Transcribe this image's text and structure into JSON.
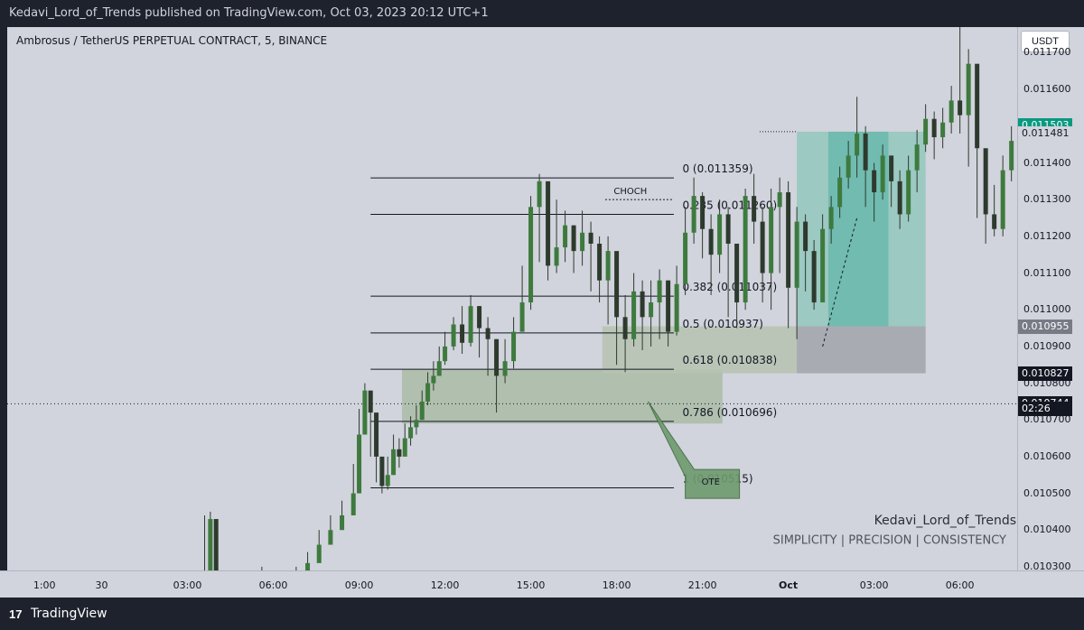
{
  "header": {
    "published": "Kedavi_Lord_of_Trends published on TradingView.com, Oct 03, 2023 20:12 UTC+1"
  },
  "symbol": "Ambrosus / TetherUS PERPETUAL CONTRACT, 5, BINANCE",
  "currency_button": "USDT",
  "footer": {
    "brand": "TradingView",
    "logo": "17"
  },
  "colors": {
    "chart_bg": "#d1d4dc",
    "candle": "#2d3a2d",
    "zone": "#a8b9a3",
    "teal": "#5fb5a8",
    "teal_light": "#9cc9c2",
    "gray_zone": "#a9abb3",
    "current": "#089981"
  },
  "watermark": {
    "author": "Kedavi_Lord_of_Trends",
    "tagline": "SIMPLICITY  |  PRECISION  |  CONSISTENCY"
  },
  "annotations": {
    "choch": "CHOCH",
    "ote": "OTE"
  },
  "fib_levels": [
    {
      "label": "0 (0.011359)",
      "price": 0.011359
    },
    {
      "label": "0.235 (0.011260)",
      "price": 0.01126
    },
    {
      "label": "0.382 (0.011037)",
      "price": 0.011037
    },
    {
      "label": "0.5 (0.010937)",
      "price": 0.010937
    },
    {
      "label": "0.618 (0.010838)",
      "price": 0.010838
    },
    {
      "label": "0.786 (0.010696)",
      "price": 0.010696
    },
    {
      "label": "1 (0.010515)",
      "price": 0.010515
    }
  ],
  "price_labels": [
    {
      "text": "0.011503",
      "price": 0.011503,
      "bg": "#089981",
      "fg": "#ffffff"
    },
    {
      "text": "0.011481",
      "price": 0.011481,
      "bg": "#d1d4dc",
      "fg": "#131722"
    },
    {
      "text": "0.010955",
      "price": 0.010955,
      "bg": "#787b86",
      "fg": "#ffffff"
    },
    {
      "text": "0.010827",
      "price": 0.010827,
      "bg": "#131722",
      "fg": "#ffffff"
    },
    {
      "text": "0.010744",
      "price": 0.010744,
      "bg": "#131722",
      "fg": "#ffffff"
    },
    {
      "text": "02:26",
      "price": 0.010729,
      "bg": "#131722",
      "fg": "#ffffff"
    }
  ],
  "chart_data": {
    "type": "line",
    "title": "Ambrosus / TetherUS PERPETUAL CONTRACT, 5, BINANCE",
    "y_ticks": [
      "0.011700",
      "0.011600",
      "0.011400",
      "0.011300",
      "0.011200",
      "0.011100",
      "0.011000",
      "0.010900",
      "0.010800",
      "0.010700",
      "0.010600",
      "0.010500",
      "0.010400",
      "0.010300"
    ],
    "y_tick_values": [
      0.0117,
      0.0116,
      0.0114,
      0.0113,
      0.0112,
      0.0111,
      0.011,
      0.0109,
      0.0108,
      0.0107,
      0.0106,
      0.0105,
      0.0104,
      0.0103
    ],
    "x_ticks": [
      "1:00",
      "30",
      "03:00",
      "06:00",
      "09:00",
      "12:00",
      "15:00",
      "18:00",
      "21:00",
      "Oct",
      "03:00",
      "06:00"
    ],
    "x_tick_hours": [
      -2,
      0,
      3,
      6,
      9,
      12,
      15,
      18,
      21,
      24,
      27,
      30
    ],
    "ylim": [
      0.01029,
      0.01177
    ],
    "xlim_hours": [
      -3.3,
      32.0
    ],
    "grid": false,
    "series": [
      {
        "x_hours": [
          3.6,
          3.8,
          4.0,
          4.4,
          5.0,
          5.6,
          6.0,
          6.4,
          6.8,
          7.2,
          7.6,
          8.0,
          8.4,
          8.8,
          9.0,
          9.2,
          9.4,
          9.6,
          9.8,
          10.0,
          10.2,
          10.4,
          10.6,
          10.8,
          11.0,
          11.2,
          11.4,
          11.6,
          11.8,
          12.0,
          12.3,
          12.6,
          12.9,
          13.2,
          13.5,
          13.8,
          14.1,
          14.4,
          14.7,
          15.0,
          15.3,
          15.6,
          15.9,
          16.2,
          16.5,
          16.8,
          17.1,
          17.4,
          17.7,
          18.0,
          18.3,
          18.6,
          18.9,
          19.2,
          19.5,
          19.8,
          20.1,
          20.4,
          20.7,
          21.0,
          21.3,
          21.6,
          21.9,
          22.2,
          22.5,
          22.8,
          23.1,
          23.4,
          23.7,
          24.0,
          24.3,
          24.6,
          24.9,
          25.2,
          25.5,
          25.8,
          26.1,
          26.4,
          26.7,
          27.0,
          27.3,
          27.6,
          27.9,
          28.2,
          28.5,
          28.8,
          29.1,
          29.4,
          29.7,
          30.0,
          30.3,
          30.6,
          30.9,
          31.2,
          31.5,
          31.8
        ],
        "close": [
          0.01027,
          0.01043,
          0.01028,
          0.01025,
          0.01026,
          0.01028,
          0.01027,
          0.01026,
          0.01028,
          0.01031,
          0.01036,
          0.0104,
          0.01044,
          0.0105,
          0.01066,
          0.01078,
          0.01072,
          0.0106,
          0.01052,
          0.01055,
          0.01062,
          0.0106,
          0.01065,
          0.01068,
          0.0107,
          0.01075,
          0.0108,
          0.01082,
          0.01086,
          0.0109,
          0.01096,
          0.01091,
          0.01101,
          0.01095,
          0.01092,
          0.01082,
          0.01086,
          0.01094,
          0.01102,
          0.01128,
          0.01135,
          0.01112,
          0.01117,
          0.01123,
          0.01116,
          0.01121,
          0.01118,
          0.01108,
          0.01116,
          0.01098,
          0.01092,
          0.01105,
          0.01098,
          0.01102,
          0.01108,
          0.01094,
          0.01107,
          0.01121,
          0.01131,
          0.01122,
          0.01115,
          0.01126,
          0.01118,
          0.01102,
          0.01131,
          0.01124,
          0.0111,
          0.01128,
          0.01132,
          0.01106,
          0.01124,
          0.01116,
          0.01102,
          0.01122,
          0.01128,
          0.01136,
          0.01142,
          0.01148,
          0.01138,
          0.01132,
          0.01142,
          0.01135,
          0.01126,
          0.01138,
          0.01145,
          0.01152,
          0.01147,
          0.01151,
          0.01157,
          0.01153,
          0.01167,
          0.01144,
          0.01126,
          0.01122,
          0.01138,
          0.01146
        ],
        "high": [
          0.01044,
          0.01045,
          0.0103,
          0.01027,
          0.01028,
          0.0103,
          0.01029,
          0.01028,
          0.0103,
          0.01034,
          0.0104,
          0.01044,
          0.01048,
          0.01058,
          0.01073,
          0.0108,
          0.01076,
          0.01068,
          0.01058,
          0.0106,
          0.01066,
          0.01065,
          0.01069,
          0.01071,
          0.01074,
          0.01078,
          0.01083,
          0.01086,
          0.0109,
          0.01094,
          0.01098,
          0.01101,
          0.01104,
          0.01101,
          0.01098,
          0.01092,
          0.01092,
          0.01098,
          0.01112,
          0.01131,
          0.01137,
          0.01134,
          0.0113,
          0.01127,
          0.01123,
          0.01127,
          0.01124,
          0.0112,
          0.0112,
          0.01112,
          0.01104,
          0.0111,
          0.01108,
          0.01108,
          0.01111,
          0.01108,
          0.01112,
          0.01128,
          0.01136,
          0.01132,
          0.01126,
          0.0113,
          0.01128,
          0.01118,
          0.01133,
          0.01137,
          0.01128,
          0.01133,
          0.01136,
          0.01135,
          0.01128,
          0.01126,
          0.01119,
          0.01126,
          0.01131,
          0.01139,
          0.01146,
          0.01158,
          0.0115,
          0.0114,
          0.01145,
          0.01142,
          0.01138,
          0.01142,
          0.01149,
          0.01156,
          0.01154,
          0.01155,
          0.01161,
          0.01177,
          0.01171,
          0.0116,
          0.0114,
          0.01134,
          0.01142,
          0.0115
        ],
        "low": [
          0.01025,
          0.01026,
          0.01025,
          0.01022,
          0.01024,
          0.01026,
          0.01025,
          0.01024,
          0.01026,
          0.01029,
          0.01033,
          0.01037,
          0.01041,
          0.01046,
          0.0105,
          0.01068,
          0.0106,
          0.01053,
          0.0105,
          0.01051,
          0.01055,
          0.01057,
          0.01061,
          0.01063,
          0.01066,
          0.0107,
          0.01074,
          0.01078,
          0.01082,
          0.01085,
          0.01089,
          0.01088,
          0.0109,
          0.01087,
          0.01082,
          0.01072,
          0.0108,
          0.01084,
          0.01095,
          0.011,
          0.01113,
          0.01108,
          0.0111,
          0.01113,
          0.0111,
          0.01112,
          0.01105,
          0.01102,
          0.01096,
          0.01085,
          0.01083,
          0.0109,
          0.01089,
          0.0109,
          0.01092,
          0.0109,
          0.01093,
          0.01104,
          0.01118,
          0.01114,
          0.01104,
          0.0111,
          0.01098,
          0.01095,
          0.011,
          0.01118,
          0.01102,
          0.011,
          0.0111,
          0.01095,
          0.01092,
          0.01105,
          0.011,
          0.01104,
          0.01118,
          0.01125,
          0.01133,
          0.01136,
          0.01128,
          0.01124,
          0.0113,
          0.01128,
          0.01122,
          0.01124,
          0.01132,
          0.01143,
          0.01141,
          0.01144,
          0.01148,
          0.01148,
          0.01139,
          0.01125,
          0.01118,
          0.0112,
          0.0112,
          0.01135
        ]
      }
    ]
  }
}
